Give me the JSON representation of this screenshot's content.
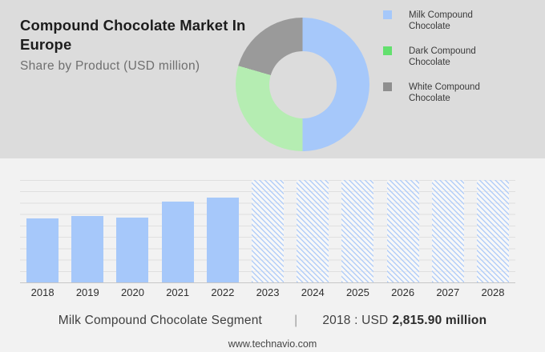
{
  "header": {
    "title": "Compound Chocolate Market In\nEurope",
    "subtitle": "Share by Product (USD million)"
  },
  "chart_data": [
    {
      "type": "pie",
      "donut": true,
      "title": "Compound Chocolate Market In Europe",
      "subtitle": "Share by Product (USD million)",
      "unit": "USD million",
      "legend_position": "right",
      "slices": [
        {
          "label": "Milk Compound Chocolate",
          "share_pct": 50,
          "color": "#a6c8fa",
          "legend_color": "#a6c8fa"
        },
        {
          "label": "Dark Compound Chocolate",
          "share_pct": 29.5,
          "color": "#b5edb2",
          "legend_color": "#63e06e"
        },
        {
          "label": "White Compound Chocolate",
          "share_pct": 20.5,
          "color": "#9a9a9a",
          "legend_color": "#8f8f8f"
        }
      ]
    },
    {
      "type": "bar",
      "categories": [
        "2018",
        "2019",
        "2020",
        "2021",
        "2022",
        "2023",
        "2024",
        "2025",
        "2026",
        "2027",
        "2028"
      ],
      "values": [
        2815.9,
        2915,
        2835,
        3550,
        3725,
        null,
        null,
        null,
        null,
        null,
        null
      ],
      "forecast_categories": [
        "2023",
        "2024",
        "2025",
        "2026",
        "2027",
        "2028"
      ],
      "forecast_style": "diagonal-hatch",
      "ylim": [
        0,
        4500
      ],
      "gridline_step": 500,
      "grid": true,
      "xlabel": "",
      "ylabel": "",
      "bar_color": "#a6c8fa",
      "hatch_color": "#b3cef8",
      "value_note": "2018 : USD 2,815.90 million"
    }
  ],
  "annotation": {
    "segment_label": "Milk Compound Chocolate Segment",
    "divider": "|",
    "value_prefix": "2018 : USD",
    "value_bold": "2,815.90 million"
  },
  "footer": {
    "website": "www.technavio.com"
  },
  "colors": {
    "header_bg": "#dcdcdc",
    "body_bg": "#f2f2f2",
    "gridline": "#dfdfdf",
    "axis": "#c6c6c6",
    "title_text": "#1d1d1d",
    "subtitle_text": "#6f6f6f"
  }
}
